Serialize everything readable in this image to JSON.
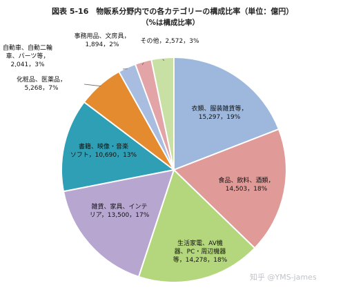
{
  "chart_data": {
    "type": "pie",
    "title": "図表 5-16　物販系分野内での各カテゴリーの構成比率（単位：億円）",
    "subtitle": "（%は構成比率）",
    "slices": [
      {
        "name": "衣類、服装雑貨等",
        "value": 15297,
        "percent": 19,
        "label_lines": [
          "衣類、服装雑貨等，",
          "15,297，19%"
        ],
        "color": "#9db8dc"
      },
      {
        "name": "食品、飲料、酒類",
        "value": 14503,
        "percent": 18,
        "label_lines": [
          "食品、飲料、酒類，",
          "14,503，18%"
        ],
        "color": "#e09a98"
      },
      {
        "name": "生活家電、AV機器、PC・周辺機器等",
        "value": 14278,
        "percent": 18,
        "label_lines": [
          "生活家電、AV機",
          "器、PC・周辺機器",
          "等，14,278，18%"
        ],
        "color": "#b4d77d"
      },
      {
        "name": "雑貨、家具、インテリア",
        "value": 13500,
        "percent": 17,
        "label_lines": [
          "雑貨、家具、インテ",
          "リア，13,500，17%"
        ],
        "color": "#b6a6d0"
      },
      {
        "name": "書籍、映像・音楽ソフト",
        "value": 10690,
        "percent": 13,
        "label_lines": [
          "書籍、映像・音楽",
          "ソフト，10,690，13%"
        ],
        "color": "#2f9fb5"
      },
      {
        "name": "化粧品、医薬品",
        "value": 5268,
        "percent": 7,
        "label_lines": [
          "化粧品、医薬品，",
          "5,268，7%"
        ],
        "color": "#e48a2f"
      },
      {
        "name": "自動車、自動二輪車、パーツ等",
        "value": 2041,
        "percent": 3,
        "label_lines": [
          "自動車、自動二輪",
          "車、パーツ等，",
          "2,041，3%"
        ],
        "color": "#a9bde0"
      },
      {
        "name": "事務用品、文房具",
        "value": 1894,
        "percent": 2,
        "label_lines": [
          "事務用品、文房具，",
          "1,894，2%"
        ],
        "color": "#e3a4a8"
      },
      {
        "name": "その他",
        "value": 2572,
        "percent": 3,
        "label_lines": [
          "その他，2,572，3%"
        ],
        "color": "#c9e0a5"
      }
    ],
    "legend": "none"
  },
  "watermark": "知乎 @YMS-james"
}
